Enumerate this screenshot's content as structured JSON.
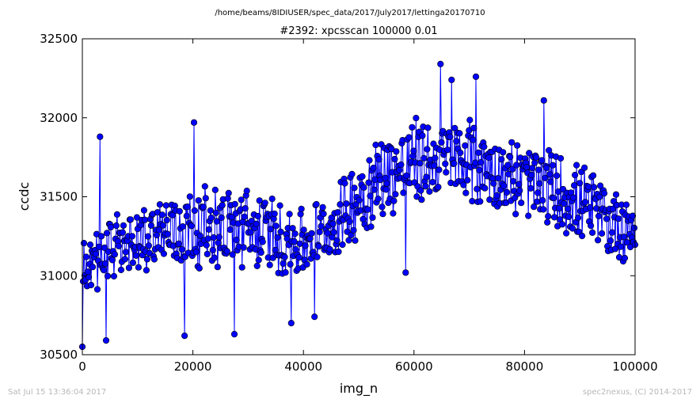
{
  "chart_data": {
    "type": "line",
    "suptitle": "/home/beams/8IDIUSER/spec_data/2017/July2017/lettinga20170710",
    "title": "#2392: xpcsscan 100000 0.01",
    "xlabel": "img_n",
    "ylabel": "ccdc",
    "xlim": [
      0,
      100000
    ],
    "ylim": [
      30500,
      32500
    ],
    "xticks": [
      0,
      20000,
      40000,
      60000,
      80000,
      100000
    ],
    "xtick_labels": [
      "0",
      "20000",
      "40000",
      "60000",
      "80000",
      "100000"
    ],
    "yticks": [
      30500,
      31000,
      31500,
      32000,
      32500
    ],
    "ytick_labels": [
      "30500",
      "31000",
      "31500",
      "32000",
      "32500"
    ],
    "grid": false,
    "marker": "circle",
    "color": "#0000ff",
    "series_profile": {
      "x": [
        0,
        5000,
        10000,
        15000,
        20000,
        25000,
        30000,
        35000,
        40000,
        45000,
        50000,
        55000,
        60000,
        65000,
        70000,
        75000,
        80000,
        85000,
        90000,
        95000,
        100000
      ],
      "mean": [
        31050,
        31150,
        31250,
        31280,
        31300,
        31310,
        31300,
        31250,
        31200,
        31300,
        31500,
        31650,
        31720,
        31730,
        31720,
        31650,
        31600,
        31550,
        31450,
        31350,
        31300
      ],
      "spread": [
        180,
        200,
        200,
        220,
        220,
        220,
        220,
        220,
        200,
        200,
        220,
        240,
        240,
        240,
        240,
        230,
        220,
        220,
        220,
        220,
        200
      ]
    },
    "highlighted_points": [
      {
        "x": 0,
        "y": 30550
      },
      {
        "x": 3200,
        "y": 31880
      },
      {
        "x": 4300,
        "y": 30590
      },
      {
        "x": 18500,
        "y": 30620
      },
      {
        "x": 20200,
        "y": 31970
      },
      {
        "x": 27500,
        "y": 30630
      },
      {
        "x": 37800,
        "y": 30700
      },
      {
        "x": 42000,
        "y": 30740
      },
      {
        "x": 58500,
        "y": 31020
      },
      {
        "x": 64800,
        "y": 32340
      },
      {
        "x": 66800,
        "y": 32240
      },
      {
        "x": 71200,
        "y": 32260
      },
      {
        "x": 83500,
        "y": 32110
      }
    ]
  },
  "footer": {
    "timestamp": "Sat Jul 15 13:36:04 2017",
    "credit": "spec2nexus, (C) 2014-2017"
  }
}
